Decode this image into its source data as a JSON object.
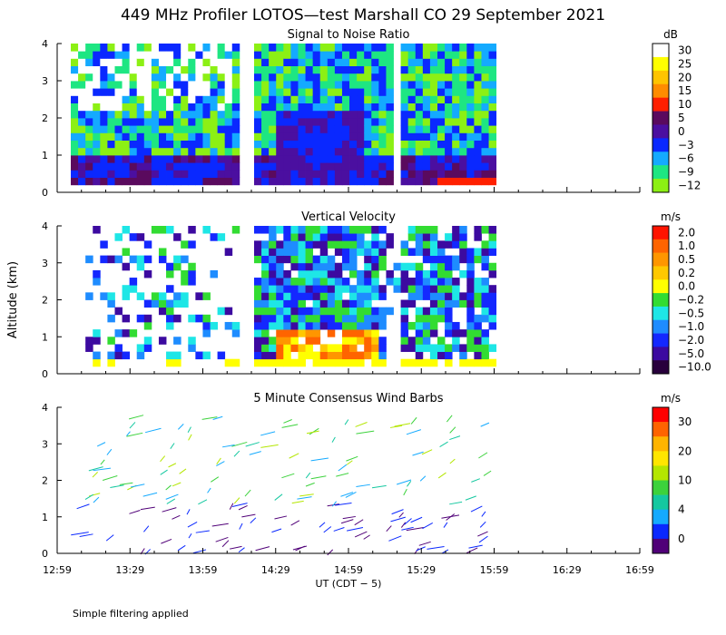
{
  "title": "449 MHz Profiler LOTOS—test Marshall CO 29 September 2021",
  "footer_note": "Simple filtering applied",
  "chart_data": [
    {
      "type": "heatmap",
      "title": "Signal to Noise Ratio",
      "ylabel": "",
      "ylim": [
        0,
        4
      ],
      "yticks": [
        "0",
        "1",
        "2",
        "3",
        "4"
      ],
      "colorbar": {
        "unit": "dB",
        "labels": [
          "30",
          "25",
          "20",
          "15",
          "10",
          "5",
          "0",
          "−3",
          "−6",
          "−9",
          "−12"
        ],
        "colors": [
          "#ffffff",
          "#ffff00",
          "#ffc400",
          "#ff8c00",
          "#ff2000",
          "#5a0a5e",
          "#4b0fa0",
          "#0a28ff",
          "#14aaff",
          "#1ee682",
          "#8cf014"
        ]
      },
      "data_extent": [
        {
          "start": 0,
          "end": 22
        },
        {
          "start": 25,
          "end": 43
        },
        {
          "start": 45,
          "end": 57
        }
      ]
    },
    {
      "type": "heatmap",
      "title": "Vertical Velocity",
      "ylabel": "Altitude (km)",
      "ylim": [
        0,
        4
      ],
      "yticks": [
        "0",
        "1",
        "2",
        "3",
        "4"
      ],
      "colorbar": {
        "unit": "m/s",
        "labels": [
          "2.0",
          "1.0",
          "0.5",
          "0.2",
          "0.0",
          "−0.2",
          "−0.5",
          "−1.0",
          "−2.0",
          "−5.0",
          "−10.0"
        ],
        "colors": [
          "#ff1400",
          "#ff6400",
          "#ff9600",
          "#ffc800",
          "#ffff00",
          "#32dc32",
          "#1ee6e6",
          "#1e8cff",
          "#1428ff",
          "#3c0aa0",
          "#28003c"
        ]
      }
    },
    {
      "type": "scatter",
      "title": "5 Minute Consensus Wind Barbs",
      "ylabel": "",
      "ylim": [
        0,
        4
      ],
      "yticks": [
        "0",
        "1",
        "2",
        "3",
        "4"
      ],
      "xlabel": "UT  (CDT − 5)",
      "xticks": [
        "12:59",
        "13:29",
        "13:59",
        "14:29",
        "14:59",
        "15:29",
        "15:59",
        "16:29",
        "16:59"
      ],
      "colorbar": {
        "unit": "m/s",
        "labels": [
          "30",
          "20",
          "10",
          "4",
          "0"
        ],
        "colors": [
          "#ff0000",
          "#ff6400",
          "#ffb400",
          "#ffe600",
          "#b4e600",
          "#3cd23c",
          "#14c8a0",
          "#14aaff",
          "#0a28ff",
          "#500078"
        ]
      }
    }
  ]
}
